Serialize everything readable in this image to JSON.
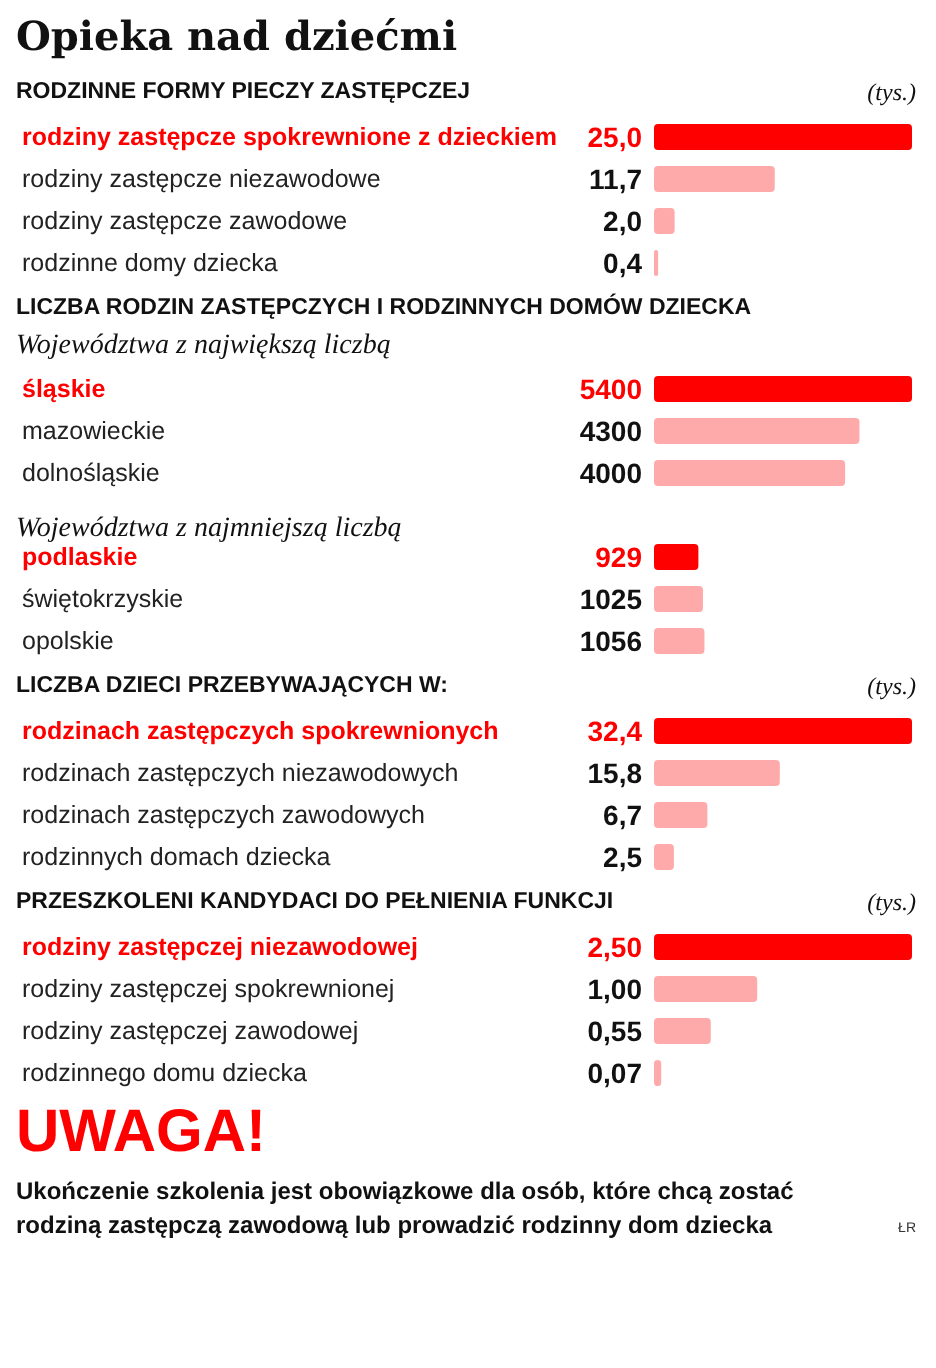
{
  "chart_data": [
    {
      "type": "bar",
      "orientation": "horizontal",
      "title": "Opieka nad dziećmi",
      "subtitle": "RODZINNE FORMY PIECZY ZASTĘPCZEJ",
      "xlabel": "(tys.)",
      "categories": [
        "rodziny zastępcze spokrewnione z dzieckiem",
        "rodziny zastępcze niezawodowe",
        "rodziny zastępcze zawodowe",
        "rodzinne domy dziecka"
      ],
      "values": [
        25.0,
        11.7,
        2.0,
        0.4
      ],
      "value_labels": [
        "25,0",
        "11,7",
        "2,0",
        "0,4"
      ],
      "colors": [
        "#ff0000",
        "#ffaaaa",
        "#ffaaaa",
        "#ffaaaa"
      ],
      "tick_labels": "y"
    },
    {
      "type": "bar",
      "orientation": "horizontal",
      "title": "LICZBA RODZIN ZASTĘPCZYCH I RODZINNYCH DOMÓW DZIECKA",
      "subtitle": "Województwa z największą liczbą",
      "categories": [
        "śląskie",
        "mazowieckie",
        "dolnośląskie",
        null,
        "podlaskie",
        "świętokrzyskie",
        "opolskie"
      ],
      "values": [
        5400,
        4300,
        4000,
        null,
        929,
        1025,
        1056
      ],
      "data_labels": true,
      "colors": [
        "#ff0000",
        "#ffaaaa",
        "#ffaaaa",
        "#ffaaaa",
        "#ff0000",
        "#ffaaaa",
        "#ffaaaa"
      ],
      "tick_labels": "y",
      "annotations": [
        "Województwa z najmniejszą liczbą"
      ]
    },
    {
      "type": "bar",
      "orientation": "horizontal",
      "title": "LICZBA DZIECI PRZEBYWAJĄCYCH W:",
      "xlabel": "(tys.)",
      "categories": [
        "rodzinach zastępczych spokrewnionych",
        "rodzinach zastępczych niezawodowych",
        "rodzinach zastępczych zawodowych",
        "rodzinnych domach dziecka"
      ],
      "values": [
        32.4,
        15.8,
        6.7,
        2.5
      ],
      "value_labels": [
        "32,4",
        "15,8",
        "6,7",
        "2,5"
      ],
      "colors": [
        "#ff0000",
        "#ffaaaa",
        "#ffaaaa",
        "#ffaaaa"
      ],
      "tick_labels": "y"
    },
    {
      "type": "bar",
      "orientation": "horizontal",
      "title": "PRZESZKOLENI KANDYDACI DO PEŁNIENIA FUNKCJI",
      "xlabel": "(tys.)",
      "categories": [
        "rodziny zastępczej niezawodowej",
        "rodziny zastępczej spokrewnionej",
        "rodziny zastępczej zawodowej",
        "rodzinnego domu dziecka"
      ],
      "values": [
        2.5,
        1.0,
        0.55,
        0.07
      ],
      "value_labels": [
        "2,50",
        "1,00",
        "0,55",
        "0,07"
      ],
      "colors": [
        "#ff0000",
        "#ffaaaa",
        "#ffaaaa",
        "#ffaaaa"
      ],
      "tick_labels": "y",
      "annotations": [
        "UWAGA!",
        "Ukończenie szkolenia jest obowiązkowe dla osób, które chcą zostać rodziną zastępczą zawodową lub prowadzić rodzinny dom dziecka",
        "ŁR"
      ]
    }
  ]
}
